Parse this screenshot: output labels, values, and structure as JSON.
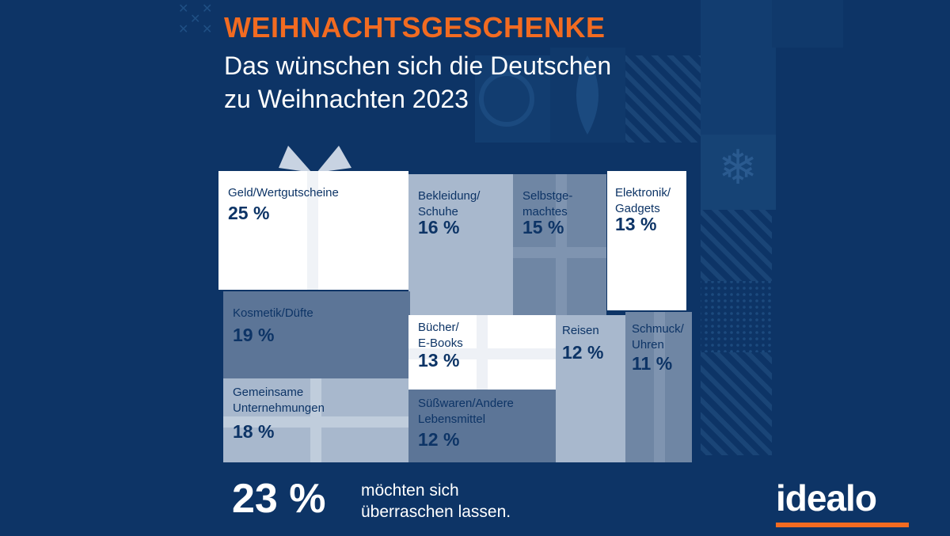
{
  "header": {
    "kicker": "WEIHNACHTSGESCHENKE",
    "line1": "Das wünschen sich die Deutschen",
    "line2": "zu Weihnachten 2023"
  },
  "chart_data": {
    "type": "table",
    "unit": "%",
    "categories": [
      {
        "label": "Geld/Wertgutscheine",
        "value": 25,
        "display": "25 %"
      },
      {
        "label": "Bekleidung/Schuhe",
        "value": 16,
        "display": "16 %"
      },
      {
        "label": "Selbstgemachtes",
        "value": 15,
        "display": "15 %"
      },
      {
        "label": "Elektronik/Gadgets",
        "value": 13,
        "display": "13 %"
      },
      {
        "label": "Kosmetik/Düfte",
        "value": 19,
        "display": "19 %"
      },
      {
        "label": "Bücher/E-Books",
        "value": 13,
        "display": "13 %"
      },
      {
        "label": "Reisen",
        "value": 12,
        "display": "12 %"
      },
      {
        "label": "Schmuck/Uhren",
        "value": 11,
        "display": "11 %"
      },
      {
        "label": "Gemeinsame Unternehmungen",
        "value": 18,
        "display": "18 %"
      },
      {
        "label": "Süßwaren/Andere Lebensmittel",
        "value": 12,
        "display": "12 %"
      }
    ]
  },
  "labels": {
    "geld": "Geld/Wertgutscheine",
    "bekleidung_1": "Bekleidung/",
    "bekleidung_2": "Schuhe",
    "selbst_1": "Selbstge-",
    "selbst_2": "machtes",
    "elektronik_1": "Elektronik/",
    "elektronik_2": "Gadgets",
    "kosmetik": "Kosmetik/Düfte",
    "buecher_1": "Bücher/",
    "buecher_2": "E-Books",
    "reisen": "Reisen",
    "schmuck_1": "Schmuck/",
    "schmuck_2": "Uhren",
    "gemeinsam_1": "Gemeinsame",
    "gemeinsam_2": "Unternehmungen",
    "suess_1": "Süßwaren/Andere",
    "suess_2": "Lebensmittel"
  },
  "summary": {
    "value": "23 %",
    "text_1": "möchten sich",
    "text_2": "überraschen lassen."
  },
  "brand": {
    "logo": "idealo",
    "accent_color": "#f26b21",
    "background_color": "#0d3466"
  }
}
